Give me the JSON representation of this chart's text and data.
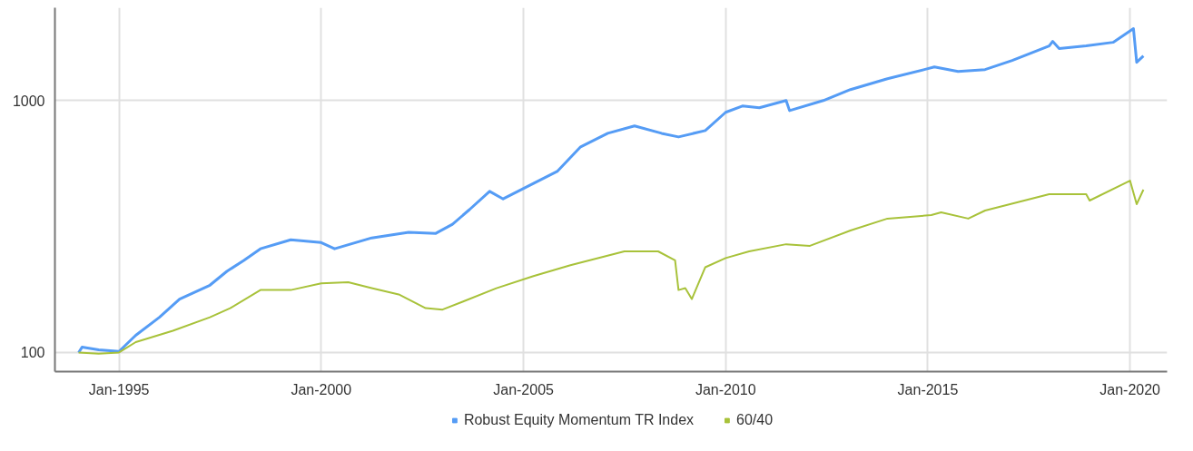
{
  "chart_data": {
    "type": "line",
    "log": "y",
    "grid": true,
    "legend": "bottom",
    "xlim": [
      "1993-06",
      "2020-12"
    ],
    "ylim": [
      84,
      2335
    ],
    "yticks": [
      100,
      1000
    ],
    "xticks": [
      {
        "value": "1995-01",
        "label": "Jan-1995"
      },
      {
        "value": "2000-01",
        "label": "Jan-2000"
      },
      {
        "value": "2005-01",
        "label": "Jan-2005"
      },
      {
        "value": "2010-01",
        "label": "Jan-2010"
      },
      {
        "value": "2015-01",
        "label": "Jan-2015"
      },
      {
        "value": "2020-01",
        "label": "Jan-2020"
      }
    ],
    "series": [
      {
        "name": "Robust Equity Momentum TR Index",
        "color": "#559cf5",
        "x": [
          "1994-01",
          "1994-02",
          "1994-07",
          "1995-01",
          "1995-06",
          "1996-01",
          "1996-07",
          "1997-04",
          "1997-09",
          "1998-02",
          "1998-07",
          "1999-04",
          "2000-01",
          "2000-05",
          "2001-04",
          "2002-03",
          "2002-11",
          "2003-04",
          "2003-09",
          "2004-03",
          "2004-07",
          "2005-04",
          "2005-11",
          "2006-06",
          "2007-02",
          "2007-10",
          "2008-06",
          "2008-11",
          "2009-07",
          "2010-01",
          "2010-06",
          "2010-11",
          "2011-07",
          "2011-08",
          "2012-06",
          "2013-02",
          "2014-01",
          "2014-12",
          "2015-03",
          "2015-10",
          "2016-06",
          "2017-02",
          "2018-01",
          "2018-02",
          "2018-04",
          "2018-12",
          "2019-08",
          "2020-02",
          "2020-03",
          "2020-05"
        ],
        "values": [
          100,
          105,
          102.5,
          101,
          117,
          138,
          163,
          185,
          210,
          232,
          258,
          280,
          273,
          258,
          285,
          300,
          297,
          323,
          369,
          436,
          407,
          469,
          523,
          655,
          741,
          793,
          741,
          717,
          760,
          898,
          951,
          936,
          1000,
          912,
          1000,
          1105,
          1221,
          1327,
          1360,
          1305,
          1327,
          1442,
          1647,
          1717,
          1607,
          1647,
          1702,
          1928,
          1418,
          1503
        ]
      },
      {
        "name": "60/40",
        "color": "#a8c23a",
        "x": [
          "1994-01",
          "1994-07",
          "1995-01",
          "1995-06",
          "1996-05",
          "1997-04",
          "1997-10",
          "1998-07",
          "1999-04",
          "2000-01",
          "2000-09",
          "2001-04",
          "2001-12",
          "2002-08",
          "2003-01",
          "2003-07",
          "2004-05",
          "2005-04",
          "2006-03",
          "2007-07",
          "2008-05",
          "2008-10",
          "2008-11",
          "2009-01",
          "2009-03",
          "2009-07",
          "2010-01",
          "2010-08",
          "2011-07",
          "2012-02",
          "2013-02",
          "2014-01",
          "2015-02",
          "2015-05",
          "2016-01",
          "2016-06",
          "2018-01",
          "2018-12",
          "2019-01",
          "2020-01",
          "2020-03",
          "2020-05"
        ],
        "values": [
          100,
          99,
          100,
          110,
          122,
          138,
          150,
          177,
          177,
          188,
          190,
          180,
          170,
          150,
          148,
          159,
          180,
          201,
          222,
          252,
          252,
          232,
          177,
          180,
          163,
          218,
          237,
          252,
          269,
          265,
          305,
          340,
          351,
          360,
          340,
          366,
          425,
          425,
          401,
          481,
          388,
          443
        ]
      }
    ]
  }
}
